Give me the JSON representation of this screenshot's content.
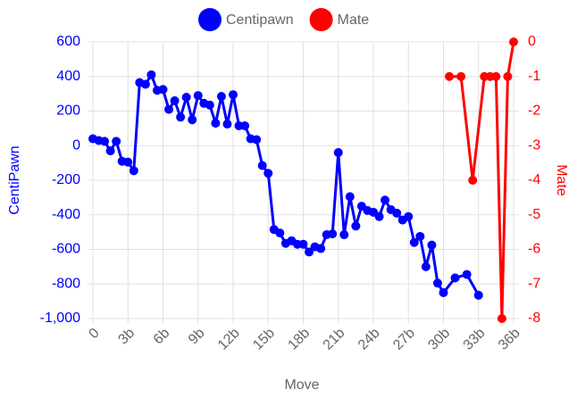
{
  "chart_data": {
    "type": "line",
    "x_label": "Move",
    "y_label": "CentiPawn",
    "y2_label": "Mate",
    "categories": [
      "0",
      null,
      null,
      null,
      null,
      null,
      "3b",
      null,
      null,
      null,
      null,
      null,
      "6b",
      null,
      null,
      null,
      null,
      null,
      "9b",
      null,
      null,
      null,
      null,
      null,
      "12b",
      null,
      null,
      null,
      null,
      null,
      "15b",
      null,
      null,
      null,
      null,
      null,
      "18b",
      null,
      null,
      null,
      null,
      null,
      "21b",
      null,
      null,
      null,
      null,
      null,
      "24b",
      null,
      null,
      null,
      null,
      null,
      "27b",
      null,
      null,
      null,
      null,
      null,
      "30b",
      null,
      null,
      null,
      null,
      null,
      "33b",
      null,
      null,
      null,
      null,
      null,
      "36b"
    ],
    "series": [
      {
        "name": "Centipawn",
        "color": "#0000ff",
        "axis": "y",
        "values": [
          40,
          30,
          25,
          -30,
          25,
          -90,
          -95,
          -145,
          365,
          355,
          410,
          320,
          325,
          210,
          260,
          165,
          280,
          150,
          290,
          245,
          235,
          130,
          285,
          125,
          295,
          115,
          115,
          40,
          35,
          -115,
          -160,
          -485,
          -505,
          -565,
          -550,
          -570,
          -570,
          -615,
          -585,
          -595,
          -515,
          -510,
          -40,
          -515,
          -295,
          -465,
          -350,
          -375,
          -385,
          -410,
          -315,
          -370,
          -390,
          -430,
          -410,
          -560,
          -525,
          -700,
          -575,
          -795,
          -850,
          null,
          -765,
          null,
          -745,
          null,
          -865,
          null,
          null,
          null,
          null,
          null,
          null
        ]
      },
      {
        "name": "Mate",
        "color": "#ff0000",
        "axis": "y2",
        "values": [
          null,
          null,
          null,
          null,
          null,
          null,
          null,
          null,
          null,
          null,
          null,
          null,
          null,
          null,
          null,
          null,
          null,
          null,
          null,
          null,
          null,
          null,
          null,
          null,
          null,
          null,
          null,
          null,
          null,
          null,
          null,
          null,
          null,
          null,
          null,
          null,
          null,
          null,
          null,
          null,
          null,
          null,
          null,
          null,
          null,
          null,
          null,
          null,
          null,
          null,
          null,
          null,
          null,
          null,
          null,
          null,
          null,
          null,
          null,
          null,
          null,
          -1,
          null,
          -1,
          null,
          -4,
          null,
          -1,
          -1,
          -1,
          -8,
          -1,
          0
        ]
      }
    ],
    "ylim": [
      -1000,
      600
    ],
    "yticks": [
      {
        "value": -1000,
        "label": "-1,000"
      },
      -800,
      -600,
      -400,
      -200,
      0,
      200,
      400,
      600
    ],
    "y2lim": [
      -8,
      0
    ],
    "y2ticks": [
      -8,
      -7,
      -6,
      -5,
      -4,
      -3,
      -2,
      -1,
      0
    ],
    "grid": true,
    "span_gaps": true,
    "legend": "top"
  }
}
